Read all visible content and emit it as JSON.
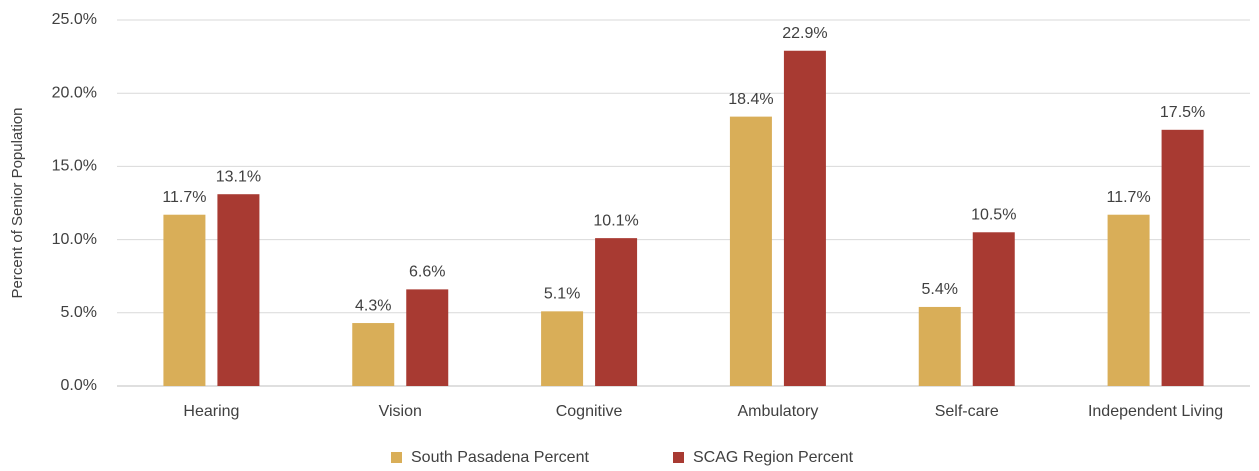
{
  "chart_data": {
    "type": "bar",
    "y_label": "Percent of Senior Population",
    "categories": [
      "Hearing",
      "Vision",
      "Cognitive",
      "Ambulatory",
      "Self-care",
      "Independent Living"
    ],
    "series": [
      {
        "name": "South Pasadena Percent",
        "color": "#d9ae58",
        "values": [
          11.7,
          4.3,
          5.1,
          18.4,
          5.4,
          11.7
        ],
        "value_labels": [
          "11.7%",
          "4.3%",
          "5.1%",
          "18.4%",
          "5.4%",
          "11.7%"
        ]
      },
      {
        "name": "SCAG Region Percent",
        "color": "#a83a32",
        "values": [
          13.1,
          6.6,
          10.1,
          22.9,
          10.5,
          17.5
        ],
        "value_labels": [
          "13.1%",
          "6.6%",
          "10.1%",
          "22.9%",
          "10.5%",
          "17.5%"
        ]
      }
    ],
    "ylim": [
      0,
      25
    ],
    "yticks": [
      {
        "value": 0,
        "label": "0.0%"
      },
      {
        "value": 5,
        "label": "5.0%"
      },
      {
        "value": 10,
        "label": "10.0%"
      },
      {
        "value": 15,
        "label": "15.0%"
      },
      {
        "value": 20,
        "label": "20.0%"
      },
      {
        "value": 25,
        "label": "25.0%"
      }
    ],
    "grid": true,
    "legend": "bottom"
  }
}
